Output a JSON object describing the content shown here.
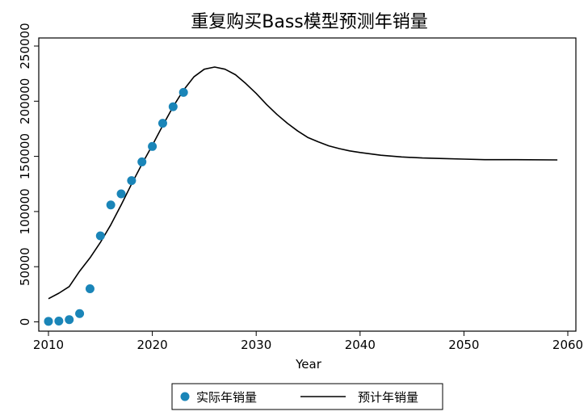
{
  "chart_data": {
    "type": "line",
    "title": "重复购买Bass模型预测年销量",
    "xlabel": "Year",
    "ylabel": "",
    "xlim": [
      2010,
      2060
    ],
    "ylim": [
      0,
      250000
    ],
    "xticks": [
      "2010",
      "2020",
      "2030",
      "2040",
      "2050",
      "2060"
    ],
    "yticks": [
      "0",
      "50000",
      "100000",
      "150000",
      "200000",
      "250000"
    ],
    "grid": false,
    "legend_position": "bottom",
    "series": [
      {
        "name": "实际年销量",
        "type": "scatter",
        "color": "#1a85b8",
        "x": [
          2010,
          2011,
          2012,
          2013,
          2014,
          2015,
          2016,
          2017,
          2018,
          2019,
          2020,
          2021,
          2022,
          2023
        ],
        "y": [
          500,
          700,
          2000,
          7500,
          30000,
          78000,
          106000,
          116000,
          128000,
          145000,
          159000,
          180000,
          195000,
          208000
        ]
      },
      {
        "name": "预计年销量",
        "type": "line",
        "color": "#000000",
        "x": [
          2010,
          2011,
          2012,
          2013,
          2014,
          2015,
          2016,
          2017,
          2018,
          2019,
          2020,
          2021,
          2022,
          2023,
          2024,
          2025,
          2026,
          2027,
          2028,
          2029,
          2030,
          2031,
          2032,
          2033,
          2034,
          2035,
          2036,
          2037,
          2038,
          2039,
          2040,
          2042,
          2044,
          2046,
          2048,
          2050,
          2052,
          2055,
          2059
        ],
        "y": [
          21000,
          26000,
          32000,
          46000,
          58000,
          72000,
          88000,
          106000,
          125000,
          143000,
          160000,
          178000,
          195000,
          210000,
          222000,
          229000,
          231000,
          229000,
          224000,
          216000,
          207000,
          197000,
          188000,
          180000,
          173000,
          167000,
          163000,
          159500,
          157000,
          155000,
          153500,
          151000,
          149500,
          148500,
          148000,
          147500,
          147000,
          147000,
          146800
        ]
      }
    ]
  }
}
